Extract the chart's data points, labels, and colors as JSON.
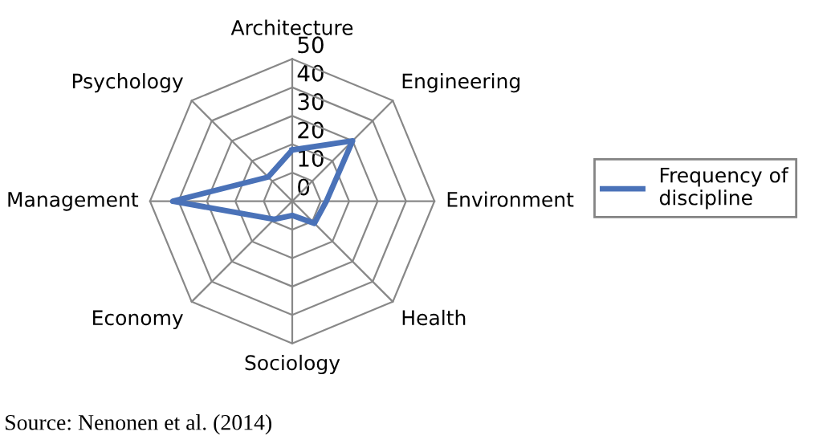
{
  "chart_data": {
    "type": "radar",
    "categories": [
      "Architecture",
      "Engineering",
      "Environment",
      "Health",
      "Sociology",
      "Economy",
      "Management",
      "Psychology"
    ],
    "series": [
      {
        "name": "Frequency of discipline",
        "color": "#4a72b8",
        "values": [
          18,
          30,
          12,
          11,
          5,
          9,
          42,
          12
        ]
      }
    ],
    "ylim": [
      0,
      50
    ],
    "yticks": [
      0,
      10,
      20,
      30,
      40,
      50
    ],
    "grid": true,
    "legend": "right",
    "marker": "none",
    "line_style": "solid",
    "annotations": [
      "Source: Nenonen et al. (2014)"
    ]
  }
}
